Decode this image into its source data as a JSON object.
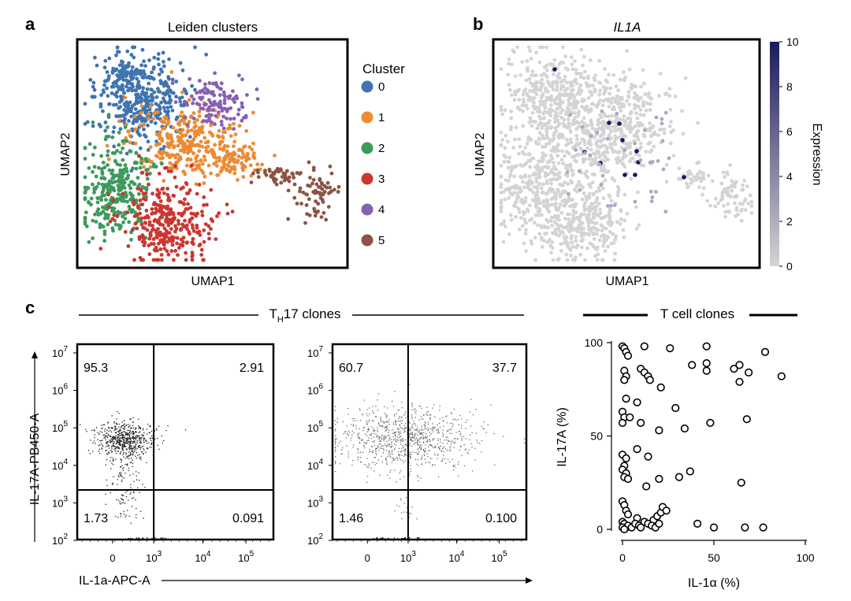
{
  "panel_a": {
    "letter": "a",
    "title": "Leiden clusters",
    "xlabel": "UMAP1",
    "ylabel": "UMAP2",
    "legend_title": "Cluster",
    "clusters": [
      {
        "label": "0",
        "color": "#3f74b0"
      },
      {
        "label": "1",
        "color": "#ec8b34"
      },
      {
        "label": "2",
        "color": "#3c9a5c"
      },
      {
        "label": "3",
        "color": "#cc3630"
      },
      {
        "label": "4",
        "color": "#8660b3"
      },
      {
        "label": "5",
        "color": "#8b5443"
      }
    ]
  },
  "panel_b": {
    "letter": "b",
    "title": "IL1A",
    "xlabel": "UMAP1",
    "ylabel": "UMAP2",
    "colorbar_label": "Expression",
    "colorbar_ticks": [
      "10",
      "8",
      "6",
      "4",
      "2",
      "0"
    ],
    "colorbar_range": [
      0,
      10
    ],
    "color_low": "#d4d4d4",
    "color_high": "#1a1a5e"
  },
  "panel_c": {
    "letter": "c",
    "group_title_main": "T",
    "group_title_sub": "H",
    "group_title_rest": "17 clones",
    "right_title": "T cell clones",
    "flow_ylabel": "IL-17A-PB450-A",
    "flow_xlabel": "IL-1a-APC-A",
    "flow_y_ticks": [
      {
        "base": "10",
        "exp": "7"
      },
      {
        "base": "10",
        "exp": "6"
      },
      {
        "base": "10",
        "exp": "5"
      },
      {
        "base": "10",
        "exp": "4"
      },
      {
        "base": "10",
        "exp": "3"
      },
      {
        "base": "10",
        "exp": "2"
      }
    ],
    "flow_x_ticks": [
      {
        "base": "0",
        "exp": ""
      },
      {
        "base": "10",
        "exp": "3"
      },
      {
        "base": "10",
        "exp": "4"
      },
      {
        "base": "10",
        "exp": "5"
      }
    ],
    "flow_plots": [
      {
        "q_upper_left": "95.3",
        "q_upper_right": "2.91",
        "q_lower_left": "1.73",
        "q_lower_right": "0.091"
      },
      {
        "q_upper_left": "60.7",
        "q_upper_right": "37.7",
        "q_lower_left": "1.46",
        "q_lower_right": "0.100"
      }
    ]
  },
  "chart_data": [
    {
      "type": "scatter",
      "title": "T cell clones",
      "xlabel": "IL-1α (%)",
      "ylabel": "IL-17A (%)",
      "xlim": [
        0,
        100
      ],
      "ylim": [
        0,
        100
      ],
      "x_ticks": [
        "0",
        "50",
        "100"
      ],
      "y_ticks": [
        "0",
        "50",
        "100"
      ],
      "points": [
        [
          0,
          98
        ],
        [
          1,
          97
        ],
        [
          2,
          95
        ],
        [
          3,
          93
        ],
        [
          12,
          98
        ],
        [
          26,
          97
        ],
        [
          46,
          98
        ],
        [
          78,
          95
        ],
        [
          1,
          85
        ],
        [
          2,
          82
        ],
        [
          1,
          80
        ],
        [
          10,
          86
        ],
        [
          12,
          84
        ],
        [
          14,
          82
        ],
        [
          15,
          80
        ],
        [
          21,
          76
        ],
        [
          38,
          88
        ],
        [
          46,
          89
        ],
        [
          46,
          85
        ],
        [
          61,
          86
        ],
        [
          64,
          88
        ],
        [
          64,
          79
        ],
        [
          69,
          84
        ],
        [
          87,
          82
        ],
        [
          2,
          70
        ],
        [
          8,
          68
        ],
        [
          0,
          63
        ],
        [
          1,
          60
        ],
        [
          0,
          57
        ],
        [
          4,
          60
        ],
        [
          10,
          57
        ],
        [
          20,
          53
        ],
        [
          29,
          65
        ],
        [
          34,
          54
        ],
        [
          48,
          57
        ],
        [
          68,
          59
        ],
        [
          0,
          40
        ],
        [
          2,
          38
        ],
        [
          8,
          43
        ],
        [
          14,
          39
        ],
        [
          1,
          34
        ],
        [
          0,
          32
        ],
        [
          2,
          30
        ],
        [
          1,
          28
        ],
        [
          3,
          27
        ],
        [
          13,
          23
        ],
        [
          20,
          27
        ],
        [
          31,
          28
        ],
        [
          37,
          31
        ],
        [
          65,
          25
        ],
        [
          0,
          15
        ],
        [
          1,
          13
        ],
        [
          2,
          10
        ],
        [
          3,
          8
        ],
        [
          8,
          6
        ],
        [
          12,
          4
        ],
        [
          14,
          3
        ],
        [
          17,
          5
        ],
        [
          19,
          7
        ],
        [
          21,
          9
        ],
        [
          22,
          12
        ],
        [
          24,
          10
        ],
        [
          0,
          4
        ],
        [
          1,
          3
        ],
        [
          2,
          1
        ],
        [
          3,
          2
        ],
        [
          5,
          1
        ],
        [
          7,
          3
        ],
        [
          9,
          2
        ],
        [
          10,
          1
        ],
        [
          16,
          2
        ],
        [
          18,
          1
        ],
        [
          20,
          3
        ],
        [
          0,
          1
        ],
        [
          1,
          0
        ],
        [
          41,
          3
        ],
        [
          50,
          1
        ],
        [
          67,
          1
        ],
        [
          77,
          1
        ]
      ]
    }
  ]
}
